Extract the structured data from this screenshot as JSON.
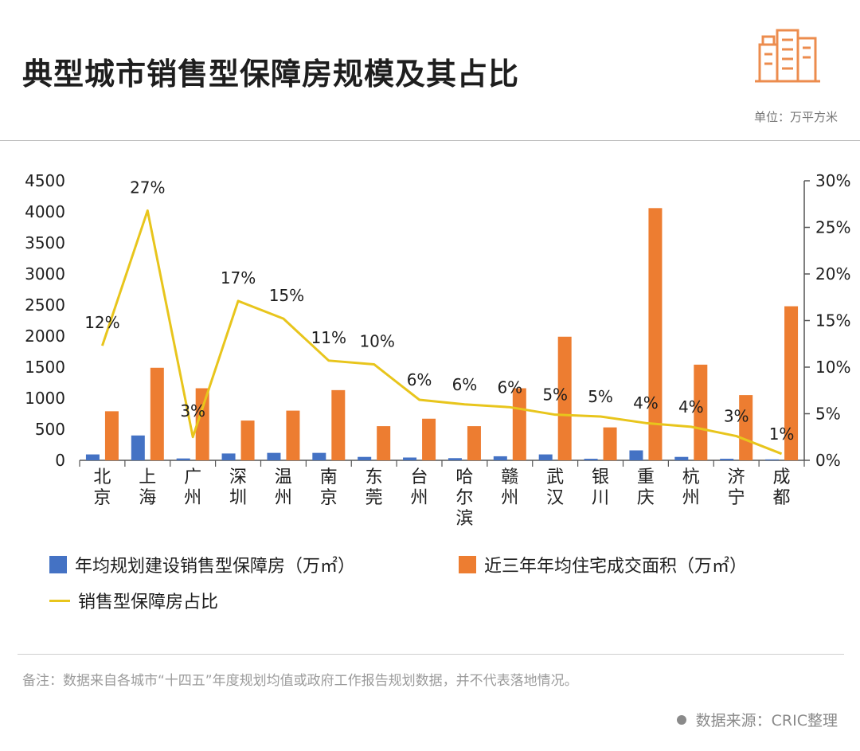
{
  "header": {
    "title": "典型城市销售型保障房规模及其占比",
    "unit": "单位：万平方米"
  },
  "footer": {
    "note": "备注：数据来自各城市“十四五”年度规划均值或政府工作报告规划数据，并不代表落地情况。",
    "source": "数据来源：CRIC整理"
  },
  "colors": {
    "bar1": "#4472c4",
    "bar2": "#ed7d31",
    "line": "#e8c51c"
  },
  "chart_data": {
    "type": "bar",
    "title": "典型城市销售型保障房规模及其占比",
    "categories": [
      "北京",
      "上海",
      "广州",
      "深圳",
      "温州",
      "南京",
      "东莞",
      "台州",
      "哈尔滨",
      "赣州",
      "武汉",
      "银川",
      "重庆",
      "杭州",
      "济宁",
      "成都"
    ],
    "series": [
      {
        "name": "年均规划建设销售型保障房（万㎡）",
        "type": "bar",
        "axis": "left",
        "values": [
          95,
          400,
          30,
          110,
          120,
          120,
          55,
          45,
          35,
          65,
          95,
          25,
          160,
          55,
          25,
          15
        ]
      },
      {
        "name": "近三年年均住宅成交面积（万㎡）",
        "type": "bar",
        "axis": "right-of-pair",
        "values": [
          790,
          1490,
          1160,
          640,
          800,
          1130,
          550,
          670,
          550,
          1160,
          1990,
          530,
          4060,
          1540,
          1050,
          2480
        ]
      },
      {
        "name": "销售型保障房占比",
        "type": "line",
        "axis": "right",
        "values": [
          12,
          27,
          3,
          17,
          15,
          11,
          10,
          6,
          6,
          6,
          5,
          5,
          4,
          4,
          3,
          1
        ],
        "plot_values": [
          12.3,
          26.8,
          2.5,
          17.1,
          15.2,
          10.7,
          10.3,
          6.5,
          6.0,
          5.7,
          4.9,
          4.7,
          4.0,
          3.6,
          2.6,
          0.7
        ],
        "labels": [
          "12%",
          "27%",
          "3%",
          "17%",
          "15%",
          "11%",
          "10%",
          "6%",
          "6%",
          "6%",
          "5%",
          "5%",
          "4%",
          "4%",
          "3%",
          "1%"
        ]
      }
    ],
    "left_axis": {
      "ylim": [
        0,
        4500
      ],
      "ticks": [
        "0",
        "500",
        "1000",
        "1500",
        "2000",
        "2500",
        "3000",
        "3500",
        "4000",
        "4500"
      ]
    },
    "right_axis": {
      "ylim": [
        0,
        30
      ],
      "ticks": [
        "0%",
        "5%",
        "10%",
        "15%",
        "20%",
        "25%",
        "30%"
      ]
    },
    "legend": [
      {
        "label": "年均规划建设销售型保障房（万㎡）",
        "kind": "bar",
        "color": "#4472c4"
      },
      {
        "label": "近三年年均住宅成交面积（万㎡）",
        "kind": "bar",
        "color": "#ed7d31"
      },
      {
        "label": "销售型保障房占比",
        "kind": "line",
        "color": "#e8c51c"
      }
    ]
  }
}
